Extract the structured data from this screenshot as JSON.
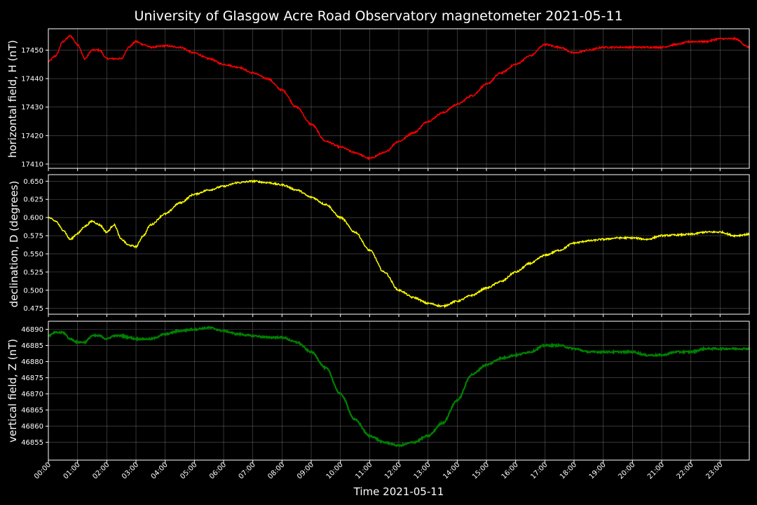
{
  "chart_data": [
    {
      "type": "line",
      "title": "University of Glasgow Acre Road Observatory magnetometer 2021-05-11",
      "ylabel": "horizontal field, H (nT)",
      "xlabel": "Time 2021-05-11",
      "x_ticks": [
        "00:00",
        "01:00",
        "02:00",
        "03:00",
        "04:00",
        "05:00",
        "06:00",
        "07:00",
        "08:00",
        "09:00",
        "10:00",
        "11:00",
        "12:00",
        "13:00",
        "14:00",
        "15:00",
        "16:00",
        "17:00",
        "18:00",
        "19:00",
        "20:00",
        "21:00",
        "22:00",
        "23:00"
      ],
      "xlim": [
        0,
        24
      ],
      "ylim": [
        17408.5,
        17457.5
      ],
      "y_ticks": [
        17410,
        17420,
        17430,
        17440,
        17450
      ],
      "grid": true,
      "color": "#ff0000",
      "series": [
        {
          "x": [
            0,
            0.25,
            0.5,
            0.75,
            1.0,
            1.25,
            1.5,
            1.75,
            2.0,
            2.25,
            2.5,
            2.75,
            3.0,
            3.25,
            3.5,
            4.0,
            4.5,
            5.0,
            5.5,
            6.0,
            6.5,
            7.0,
            7.5,
            8.0,
            8.5,
            9.0,
            9.5,
            10.0,
            10.5,
            11.0,
            11.5,
            12.0,
            12.5,
            13.0,
            13.5,
            14.0,
            14.5,
            15.0,
            15.5,
            16.0,
            16.5,
            17.0,
            17.5,
            18.0,
            18.5,
            19.0,
            19.5,
            20.0,
            20.5,
            21.0,
            21.5,
            22.0,
            22.5,
            23.0,
            23.5,
            24.0
          ],
          "values": [
            17446,
            17448,
            17453,
            17455,
            17452,
            17447,
            17450,
            17450,
            17447,
            17447,
            17447,
            17451,
            17453,
            17452,
            17451,
            17451.5,
            17451,
            17449,
            17447,
            17445,
            17444,
            17442,
            17440,
            17436,
            17430,
            17424,
            17418,
            17416,
            17414,
            17412,
            17414,
            17418,
            17421,
            17425,
            17428,
            17431,
            17434,
            17438,
            17442,
            17445,
            17448,
            17452,
            17451,
            17449,
            17450,
            17451,
            17451,
            17451,
            17451,
            17451,
            17452,
            17453,
            17453,
            17454,
            17454,
            17451
          ]
        }
      ]
    },
    {
      "type": "line",
      "ylabel": "declination, D (degrees)",
      "xlim": [
        0,
        24
      ],
      "ylim": [
        0.467,
        0.659
      ],
      "y_ticks": [
        0.475,
        0.5,
        0.525,
        0.55,
        0.575,
        0.6,
        0.625,
        0.65
      ],
      "y_tick_labels": [
        "0.475",
        "0.500",
        "0.525",
        "0.550",
        "0.575",
        "0.600",
        "0.625",
        "0.650"
      ],
      "grid": true,
      "color": "#ffff00",
      "series": [
        {
          "x": [
            0,
            0.25,
            0.5,
            0.75,
            1.0,
            1.25,
            1.5,
            1.75,
            2.0,
            2.25,
            2.5,
            2.75,
            3.0,
            3.25,
            3.5,
            4.0,
            4.5,
            5.0,
            5.5,
            6.0,
            6.5,
            7.0,
            7.5,
            8.0,
            8.5,
            9.0,
            9.5,
            10.0,
            10.5,
            11.0,
            11.5,
            12.0,
            12.5,
            13.0,
            13.5,
            14.0,
            14.5,
            15.0,
            15.5,
            16.0,
            16.5,
            17.0,
            17.5,
            18.0,
            18.5,
            19.0,
            19.5,
            20.0,
            20.5,
            21.0,
            21.5,
            22.0,
            22.5,
            23.0,
            23.5,
            24.0
          ],
          "values": [
            0.6,
            0.595,
            0.583,
            0.57,
            0.578,
            0.588,
            0.595,
            0.59,
            0.58,
            0.59,
            0.57,
            0.562,
            0.56,
            0.575,
            0.59,
            0.605,
            0.62,
            0.632,
            0.638,
            0.643,
            0.648,
            0.65,
            0.648,
            0.645,
            0.638,
            0.628,
            0.618,
            0.6,
            0.58,
            0.555,
            0.525,
            0.5,
            0.49,
            0.482,
            0.478,
            0.485,
            0.493,
            0.503,
            0.512,
            0.525,
            0.537,
            0.548,
            0.555,
            0.565,
            0.568,
            0.57,
            0.572,
            0.572,
            0.57,
            0.575,
            0.576,
            0.577,
            0.58,
            0.58,
            0.575,
            0.577
          ]
        }
      ]
    },
    {
      "type": "line",
      "ylabel": "vertical field, Z (nT)",
      "xlim": [
        0,
        24
      ],
      "ylim": [
        46849.5,
        46892.5
      ],
      "y_ticks": [
        46855,
        46860,
        46865,
        46870,
        46875,
        46880,
        46885,
        46890
      ],
      "grid": true,
      "color": "#008000",
      "series": [
        {
          "x": [
            0,
            0.25,
            0.5,
            0.75,
            1.0,
            1.25,
            1.5,
            1.75,
            2.0,
            2.25,
            2.5,
            2.75,
            3.0,
            3.25,
            3.5,
            4.0,
            4.5,
            5.0,
            5.5,
            6.0,
            6.5,
            7.0,
            7.5,
            8.0,
            8.5,
            9.0,
            9.5,
            10.0,
            10.5,
            11.0,
            11.5,
            12.0,
            12.5,
            13.0,
            13.5,
            14.0,
            14.5,
            15.0,
            15.5,
            16.0,
            16.5,
            17.0,
            17.5,
            18.0,
            18.5,
            19.0,
            19.5,
            20.0,
            20.5,
            21.0,
            21.5,
            22.0,
            22.5,
            23.0,
            23.5,
            24.0
          ],
          "values": [
            46888,
            46889,
            46889,
            46887,
            46886,
            46886,
            46888,
            46888,
            46887,
            46888,
            46888,
            46887.5,
            46887,
            46887,
            46887,
            46888.5,
            46889.5,
            46890,
            46890.5,
            46889.5,
            46888.5,
            46888,
            46887.5,
            46887.5,
            46886,
            46883,
            46878,
            46870,
            46862,
            46857,
            46855,
            46854,
            46855,
            46857,
            46861,
            46868,
            46876,
            46879,
            46881,
            46882,
            46883,
            46885,
            46885,
            46884,
            46883,
            46883,
            46883,
            46883,
            46882,
            46882,
            46883,
            46883,
            46884,
            46884,
            46884,
            46884
          ]
        }
      ]
    }
  ]
}
